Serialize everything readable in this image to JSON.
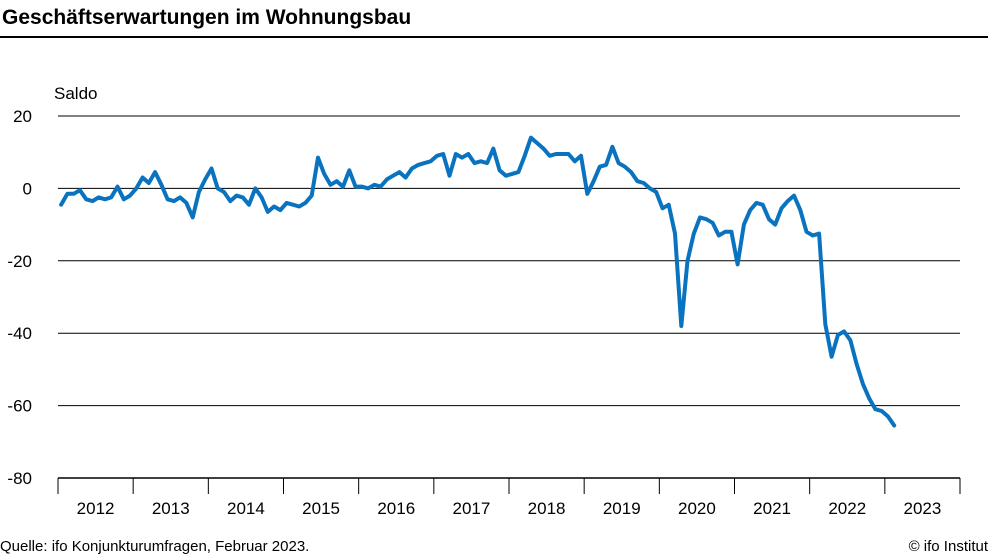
{
  "chart_data": {
    "type": "line",
    "title": "Geschäftserwartungen im Wohnungsbau",
    "ylabel": "Saldo",
    "xlabel": "",
    "ylim": [
      -80,
      20
    ],
    "yticks": [
      "20",
      "0",
      "-20",
      "-40",
      "-60",
      "-80"
    ],
    "ytick_values": [
      20,
      0,
      -20,
      -40,
      -60,
      -80
    ],
    "xlim_years": [
      2011.5,
      2023.5
    ],
    "year_labels": [
      "2012",
      "2013",
      "2014",
      "2015",
      "2016",
      "2017",
      "2018",
      "2019",
      "2020",
      "2021",
      "2022",
      "2023"
    ],
    "grid": true,
    "line_color": "#0a73c0",
    "series": [
      {
        "x_start": "2011-07",
        "frequency": "monthly",
        "x_end": "2023-02",
        "values": [
          -4.5,
          -1.5,
          -1.5,
          -0.5,
          -3.0,
          -3.5,
          -2.5,
          -3.0,
          -2.5,
          0.5,
          -3.0,
          -2.0,
          0.0,
          3.0,
          1.5,
          4.5,
          1.0,
          -3.0,
          -3.5,
          -2.5,
          -4.0,
          -8.0,
          -1.0,
          2.5,
          5.5,
          0.0,
          -1.0,
          -3.5,
          -2.0,
          -2.5,
          -4.5,
          0.0,
          -2.5,
          -6.5,
          -5.0,
          -6.0,
          -4.0,
          -4.5,
          -5.0,
          -4.0,
          -2.0,
          8.5,
          4.0,
          1.0,
          2.0,
          0.5,
          5.0,
          0.5,
          0.5,
          0.0,
          1.0,
          0.5,
          2.5,
          3.5,
          4.5,
          3.0,
          5.5,
          6.5,
          7.0,
          7.5,
          9.0,
          9.5,
          3.5,
          9.5,
          8.5,
          9.5,
          7.0,
          7.5,
          7.0,
          11.0,
          5.0,
          3.5,
          4.0,
          4.5,
          9.0,
          14.0,
          12.5,
          11.0,
          9.0,
          9.5,
          9.5,
          9.5,
          7.5,
          9.0,
          -1.5,
          2.0,
          6.0,
          6.5,
          11.5,
          7.0,
          6.0,
          4.5,
          2.0,
          1.5,
          0.0,
          -1.0,
          -5.5,
          -4.5,
          -12.5,
          -38.0,
          -20.0,
          -12.5,
          -8.0,
          -8.5,
          -9.5,
          -13.0,
          -12.0,
          -12.0,
          -21.0,
          -10.0,
          -6.0,
          -4.0,
          -4.5,
          -8.5,
          -10.0,
          -5.5,
          -3.5,
          -2.0,
          -6.0,
          -12.0,
          -13.0,
          -12.5,
          -37.5,
          -46.5,
          -40.5,
          -39.5,
          -42.0,
          -48.5,
          -54.0,
          -58.0,
          -61.0,
          -61.5,
          -63.0,
          -65.5
        ]
      }
    ]
  },
  "footer": {
    "source": "Quelle: ifo Konjunkturumfragen, Februar 2023.",
    "credit": "© ifo Institut"
  }
}
